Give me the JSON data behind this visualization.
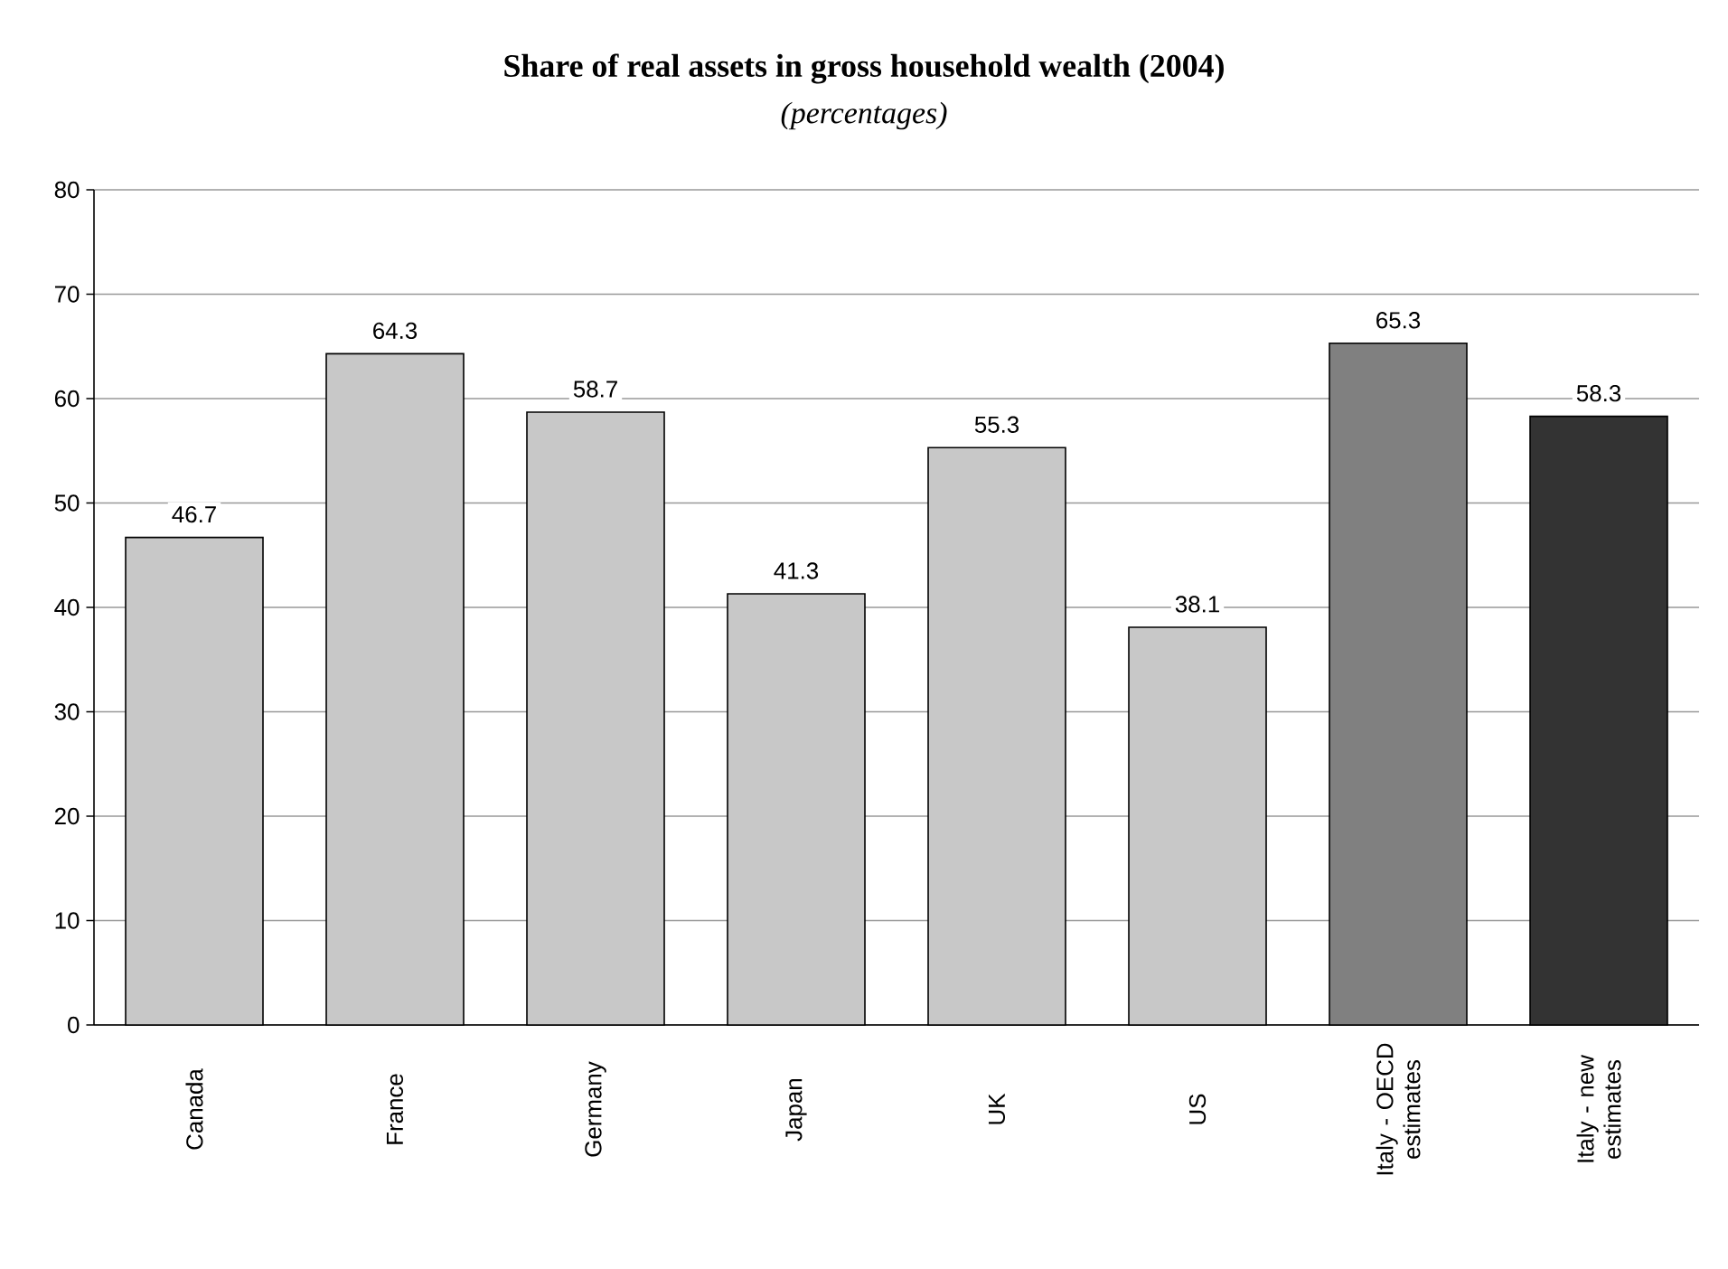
{
  "chart_data": {
    "type": "bar",
    "title": "Share of real assets in gross household wealth (2004)",
    "subtitle": "*(percentages)*",
    "categories": [
      "Canada",
      "France",
      "Germany",
      "Japan",
      "UK",
      "US",
      "Italy - OECD estimates",
      "Italy - new estimates"
    ],
    "values": [
      46.7,
      64.3,
      58.7,
      41.3,
      55.3,
      38.1,
      65.3,
      58.3
    ],
    "colors": [
      "#c8c8c8",
      "#c8c8c8",
      "#c8c8c8",
      "#c8c8c8",
      "#c8c8c8",
      "#c8c8c8",
      "#808080",
      "#333333"
    ],
    "ylim": [
      0,
      80
    ],
    "yticks": [
      0,
      10,
      20,
      30,
      40,
      50,
      60,
      70,
      80
    ],
    "grid": "y",
    "data_labels": true
  }
}
